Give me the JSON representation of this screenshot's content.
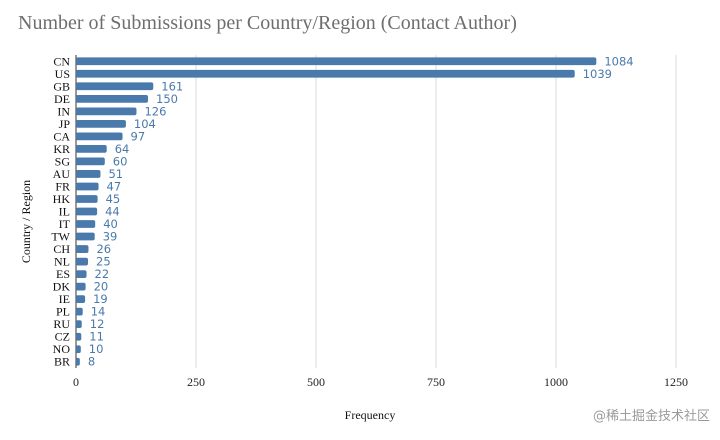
{
  "chart_data": {
    "type": "bar",
    "orientation": "horizontal",
    "title": "Number of Submissions per Country/Region (Contact Author)",
    "xlabel": "Frequency",
    "ylabel": "Country / Region",
    "xlim": [
      0,
      1300
    ],
    "xticks": [
      0,
      250,
      500,
      750,
      1000,
      1250
    ],
    "grid": "vertical",
    "bar_color": "#4a7aab",
    "label_color": "#4a7aab",
    "categories": [
      "CN",
      "US",
      "GB",
      "DE",
      "IN",
      "JP",
      "CA",
      "KR",
      "SG",
      "AU",
      "FR",
      "HK",
      "IL",
      "IT",
      "TW",
      "CH",
      "NL",
      "ES",
      "DK",
      "IE",
      "PL",
      "RU",
      "CZ",
      "NO",
      "BR"
    ],
    "values": [
      1084,
      1039,
      161,
      150,
      126,
      104,
      97,
      64,
      60,
      51,
      47,
      45,
      44,
      40,
      39,
      26,
      25,
      22,
      20,
      19,
      14,
      12,
      11,
      10,
      8
    ]
  },
  "watermark": "@稀土掘金技术社区"
}
